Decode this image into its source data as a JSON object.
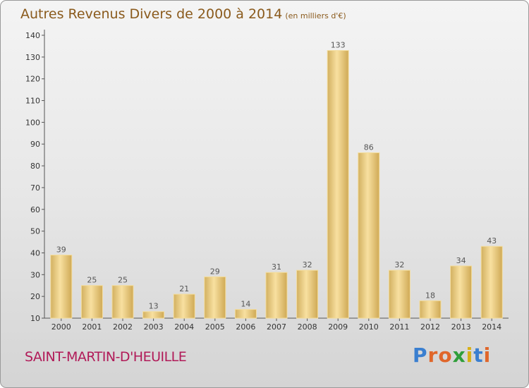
{
  "header": {
    "title": "Autres Revenus Divers de 2000 à 2014",
    "subtitle": "(en milliers d'€)"
  },
  "footer": {
    "place": "SAINT-MARTIN-D'HEUILLE",
    "logo": "Proxiti",
    "logo_colors": [
      "#3a7fd0",
      "#e0662a",
      "#e0662a",
      "#2f9e3a",
      "#d8b015",
      "#3a7fd0",
      "#e0662a"
    ]
  },
  "chart_data": {
    "type": "bar",
    "title": "Autres Revenus Divers de 2000 à 2014",
    "subtitle": "(en milliers d'€)",
    "categories": [
      "2000",
      "2001",
      "2002",
      "2003",
      "2004",
      "2005",
      "2006",
      "2007",
      "2008",
      "2009",
      "2010",
      "2011",
      "2012",
      "2013",
      "2014"
    ],
    "values": [
      39,
      25,
      25,
      13,
      21,
      29,
      14,
      31,
      32,
      133,
      86,
      32,
      18,
      34,
      43
    ],
    "ylim": [
      10,
      140
    ],
    "yticks": [
      10,
      20,
      30,
      40,
      50,
      60,
      70,
      80,
      90,
      100,
      110,
      120,
      130,
      140
    ],
    "grid": false,
    "bar_color": "#e8c878",
    "bar_highlight": "#f7dd9a",
    "label_color": "#555555"
  }
}
